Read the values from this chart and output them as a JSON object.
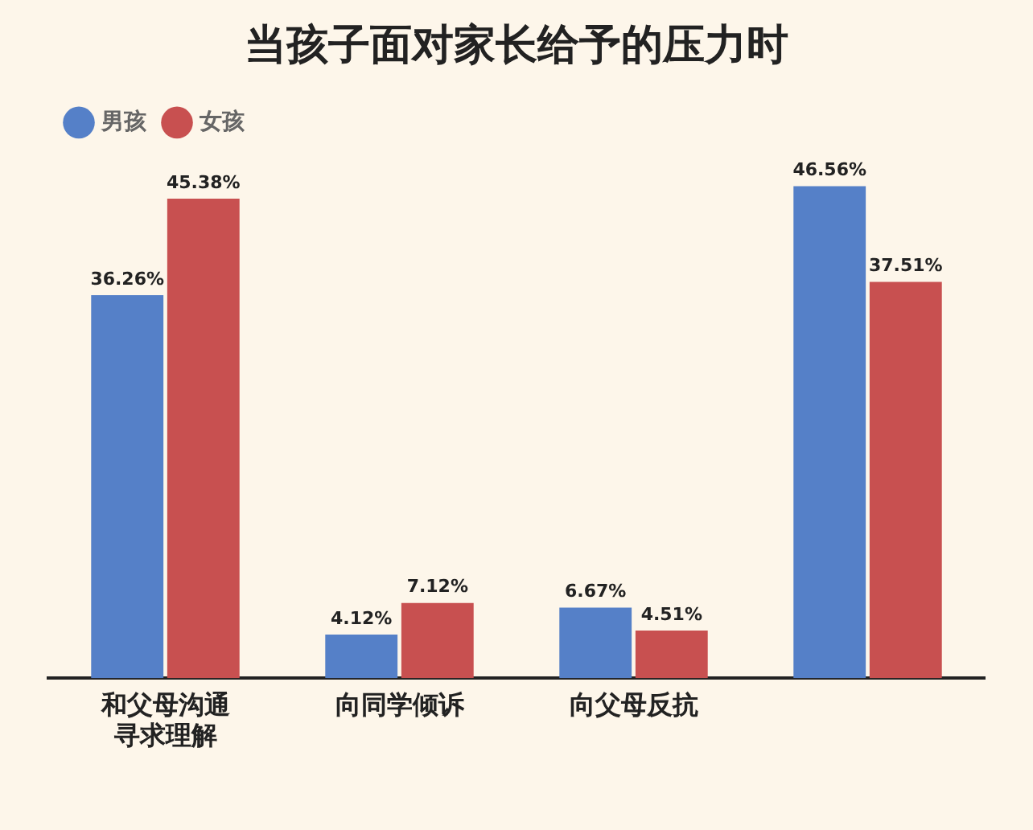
{
  "chart_data": {
    "type": "bar",
    "title": "当孩子面对家长给予的压力时",
    "categories": [
      [
        "和父母沟通",
        "寻求理解"
      ],
      "向同学倾诉",
      "向父母反抗",
      null
    ],
    "series": [
      {
        "name": "男孩",
        "color": "#5580c8",
        "values": [
          36.26,
          4.12,
          6.67,
          46.56
        ],
        "value_labels": [
          "36.26%",
          "4.12%",
          "6.67%",
          "46.56%"
        ]
      },
      {
        "name": "女孩",
        "color": "#c85050",
        "values": [
          45.38,
          7.12,
          4.51,
          37.51
        ],
        "value_labels": [
          "45.38%",
          "7.12%",
          "4.51%",
          "37.51%"
        ]
      }
    ],
    "legend": "top left",
    "tick_labels": "x",
    "grid": false
  }
}
